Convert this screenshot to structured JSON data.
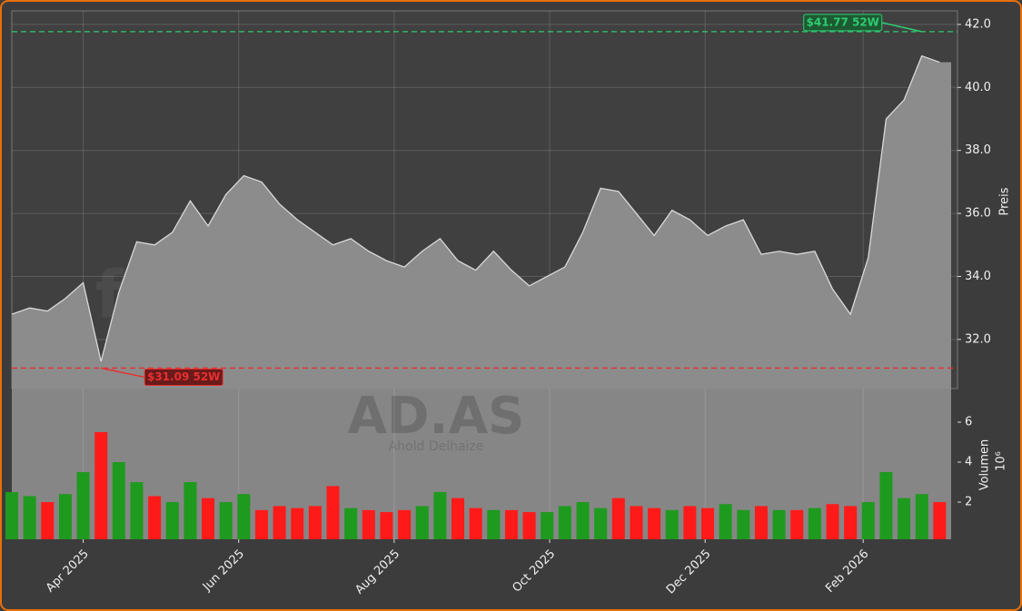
{
  "chart_data": {
    "type": "area",
    "title_watermark": "forexsignale.trade",
    "symbol": "AD.AS",
    "company": "Ahold Delhaize",
    "y_label": "Preis",
    "y2_label": "Volumen",
    "y2_unit": "10⁶",
    "x": [
      "2025-03-04",
      "2025-03-11",
      "2025-03-18",
      "2025-03-25",
      "2025-04-01",
      "2025-04-08",
      "2025-04-15",
      "2025-04-22",
      "2025-04-29",
      "2025-05-06",
      "2025-05-13",
      "2025-05-20",
      "2025-05-27",
      "2025-06-03",
      "2025-06-10",
      "2025-06-17",
      "2025-06-24",
      "2025-07-01",
      "2025-07-08",
      "2025-07-15",
      "2025-07-22",
      "2025-07-29",
      "2025-08-05",
      "2025-08-12",
      "2025-08-19",
      "2025-08-26",
      "2025-09-02",
      "2025-09-09",
      "2025-09-16",
      "2025-09-23",
      "2025-09-30",
      "2025-10-07",
      "2025-10-14",
      "2025-10-21",
      "2025-10-28",
      "2025-11-04",
      "2025-11-11",
      "2025-11-18",
      "2025-11-25",
      "2025-12-02",
      "2025-12-09",
      "2025-12-16",
      "2025-12-23",
      "2025-12-30",
      "2026-01-06",
      "2026-01-13",
      "2026-01-20",
      "2026-01-27",
      "2026-02-03",
      "2026-02-10",
      "2026-02-17",
      "2026-02-24",
      "2026-03-03"
    ],
    "series": [
      {
        "name": "Preis",
        "color": "#d9d9d9",
        "fill": "#8c8c8c",
        "values": [
          32.8,
          33.0,
          32.9,
          33.3,
          33.8,
          31.3,
          33.5,
          35.1,
          35.0,
          35.4,
          36.4,
          35.6,
          36.6,
          37.2,
          37.0,
          36.3,
          35.8,
          35.4,
          35.0,
          35.2,
          34.8,
          34.5,
          34.3,
          34.8,
          35.2,
          34.5,
          34.2,
          34.8,
          34.2,
          33.7,
          34.0,
          34.3,
          35.4,
          36.8,
          36.7,
          36.0,
          35.3,
          36.1,
          35.8,
          35.3,
          35.6,
          35.8,
          34.7,
          34.8,
          34.7,
          34.8,
          33.6,
          32.8,
          34.6,
          39.0,
          39.6,
          41.0,
          40.8
        ]
      },
      {
        "name": "Volumen",
        "axis": "y2",
        "up_color": "#1e9a1e",
        "down_color": "#ff1a1a",
        "values": [
          2.5,
          2.3,
          2.0,
          2.4,
          3.5,
          5.5,
          4.0,
          3.0,
          2.3,
          2.0,
          3.0,
          2.2,
          2.0,
          2.4,
          1.6,
          1.8,
          1.7,
          1.8,
          2.8,
          1.7,
          1.6,
          1.5,
          1.6,
          1.8,
          2.5,
          2.2,
          1.7,
          1.6,
          1.6,
          1.5,
          1.5,
          1.8,
          2.0,
          1.7,
          2.2,
          1.8,
          1.7,
          1.6,
          1.8,
          1.7,
          1.9,
          1.6,
          1.8,
          1.6,
          1.6,
          1.7,
          1.9,
          1.8,
          2.0,
          3.5,
          2.2,
          2.4,
          2.0
        ]
      }
    ],
    "high": {
      "value": 41.77,
      "label": "$41.77 52W",
      "color": "#2ecc71"
    },
    "low": {
      "value": 31.09,
      "label": "$31.09 52W",
      "color": "#e83030"
    },
    "xlim": [
      "2025-03-04",
      "2026-03-10"
    ],
    "xticks": [
      {
        "value": "2025-04-01",
        "label": "Apr 2025"
      },
      {
        "value": "2025-06-01",
        "label": "Jun 2025"
      },
      {
        "value": "2025-08-01",
        "label": "Aug 2025"
      },
      {
        "value": "2025-10-01",
        "label": "Oct 2025"
      },
      {
        "value": "2025-12-01",
        "label": "Dec 2025"
      },
      {
        "value": "2026-02-01",
        "label": "Feb 2026"
      }
    ],
    "ylim": [
      30.44,
      42.43
    ],
    "yticks": [
      {
        "value": 32,
        "label": "32.0"
      },
      {
        "value": 34,
        "label": "34.0"
      },
      {
        "value": 36,
        "label": "36.0"
      },
      {
        "value": 38,
        "label": "38.0"
      },
      {
        "value": 40,
        "label": "40.0"
      },
      {
        "value": 42,
        "label": "42.0"
      }
    ],
    "y2lim": [
      0.14,
      7.68
    ],
    "y2ticks": [
      2,
      4,
      6
    ],
    "grid": true
  }
}
